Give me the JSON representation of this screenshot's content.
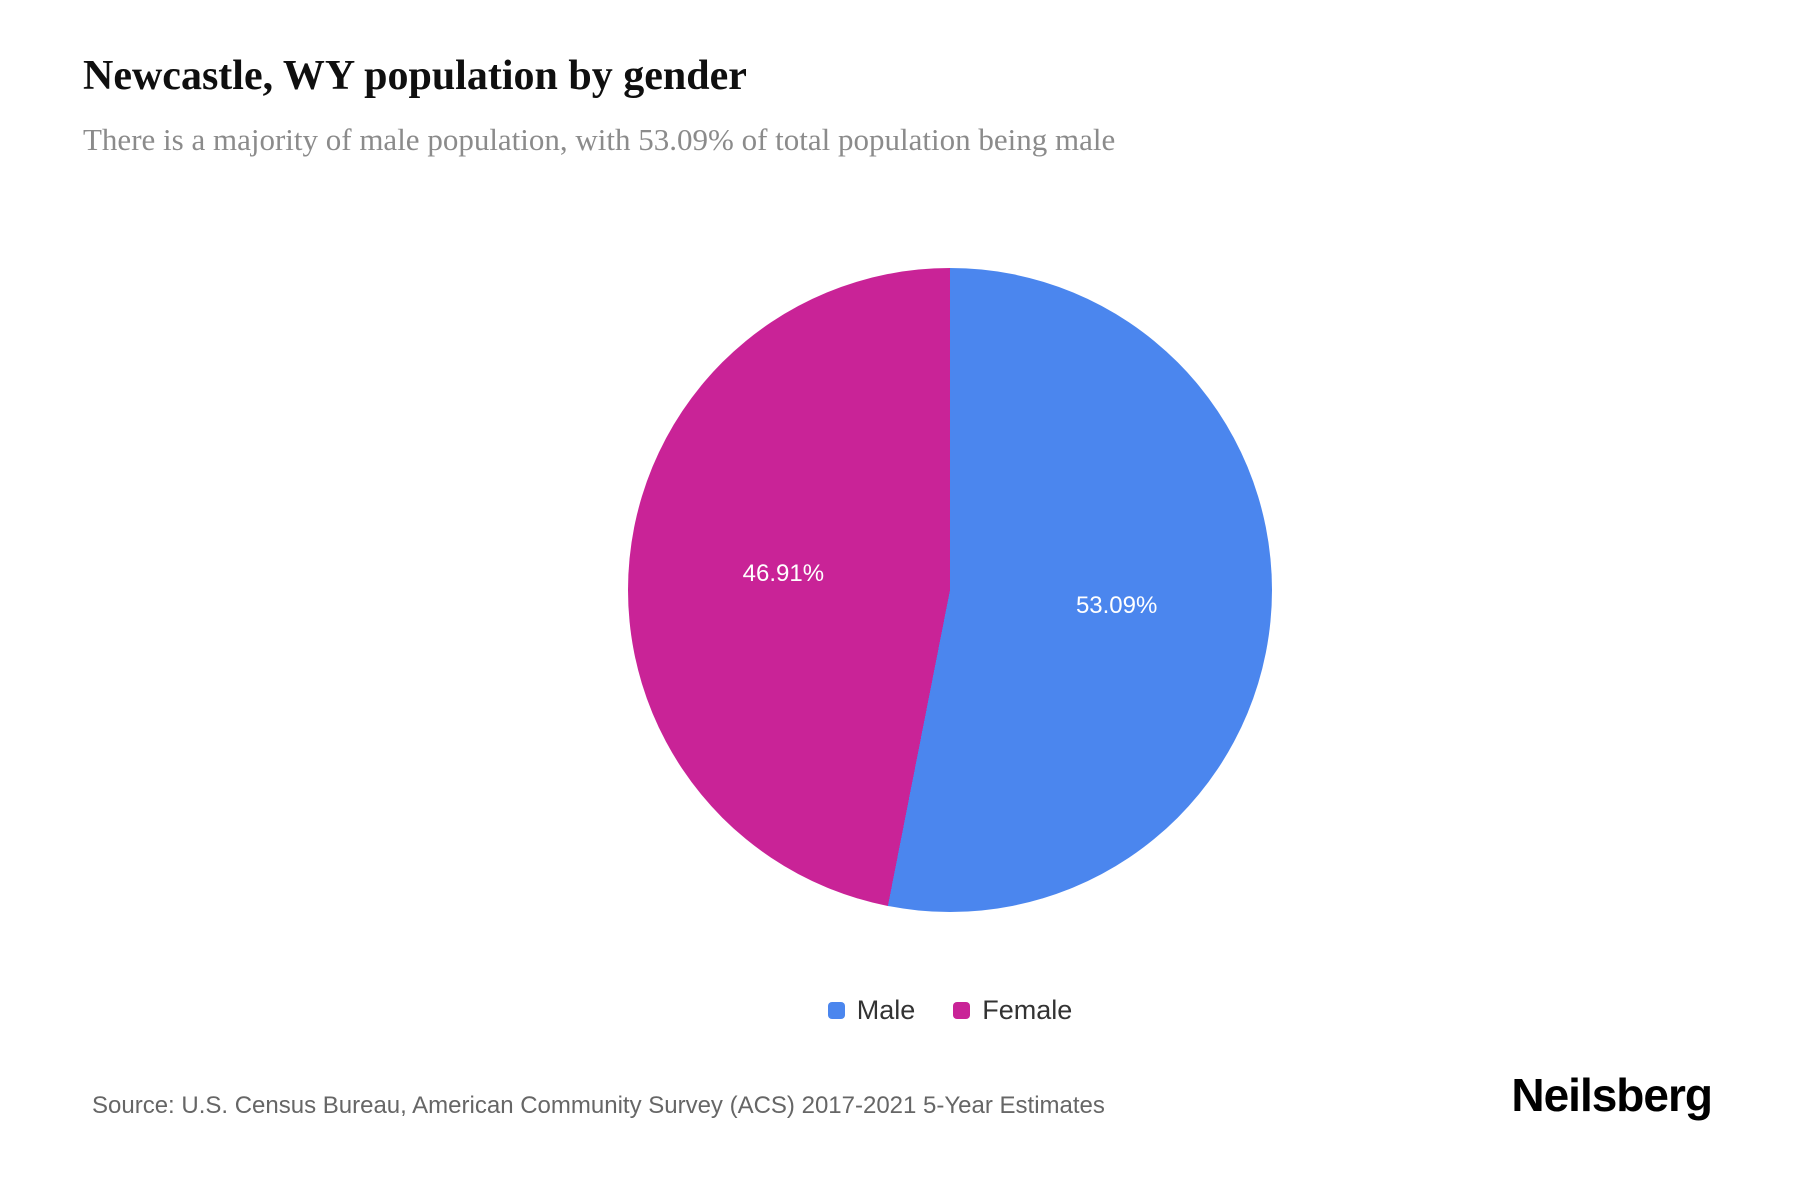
{
  "header": {
    "title": "Newcastle, WY population by gender",
    "subtitle": "There is a majority of male population, with 53.09% of total population being male"
  },
  "chart_data": {
    "type": "pie",
    "title": "Newcastle, WY population by gender",
    "start_angle_deg": 0,
    "direction": "clockwise",
    "slices": [
      {
        "label": "Male",
        "value": 53.09,
        "display": "53.09%",
        "color": "#4b86ee"
      },
      {
        "label": "Female",
        "value": 46.91,
        "display": "46.91%",
        "color": "#c92397"
      }
    ],
    "legend_position": "bottom",
    "data_labels": "inside-percent"
  },
  "legend": {
    "items": [
      {
        "label": "Male",
        "color": "#4b86ee"
      },
      {
        "label": "Female",
        "color": "#c92397"
      }
    ]
  },
  "footer": {
    "source": "Source: U.S. Census Bureau, American Community Survey (ACS) 2017-2021 5-Year Estimates",
    "brand": "Neilsberg"
  }
}
